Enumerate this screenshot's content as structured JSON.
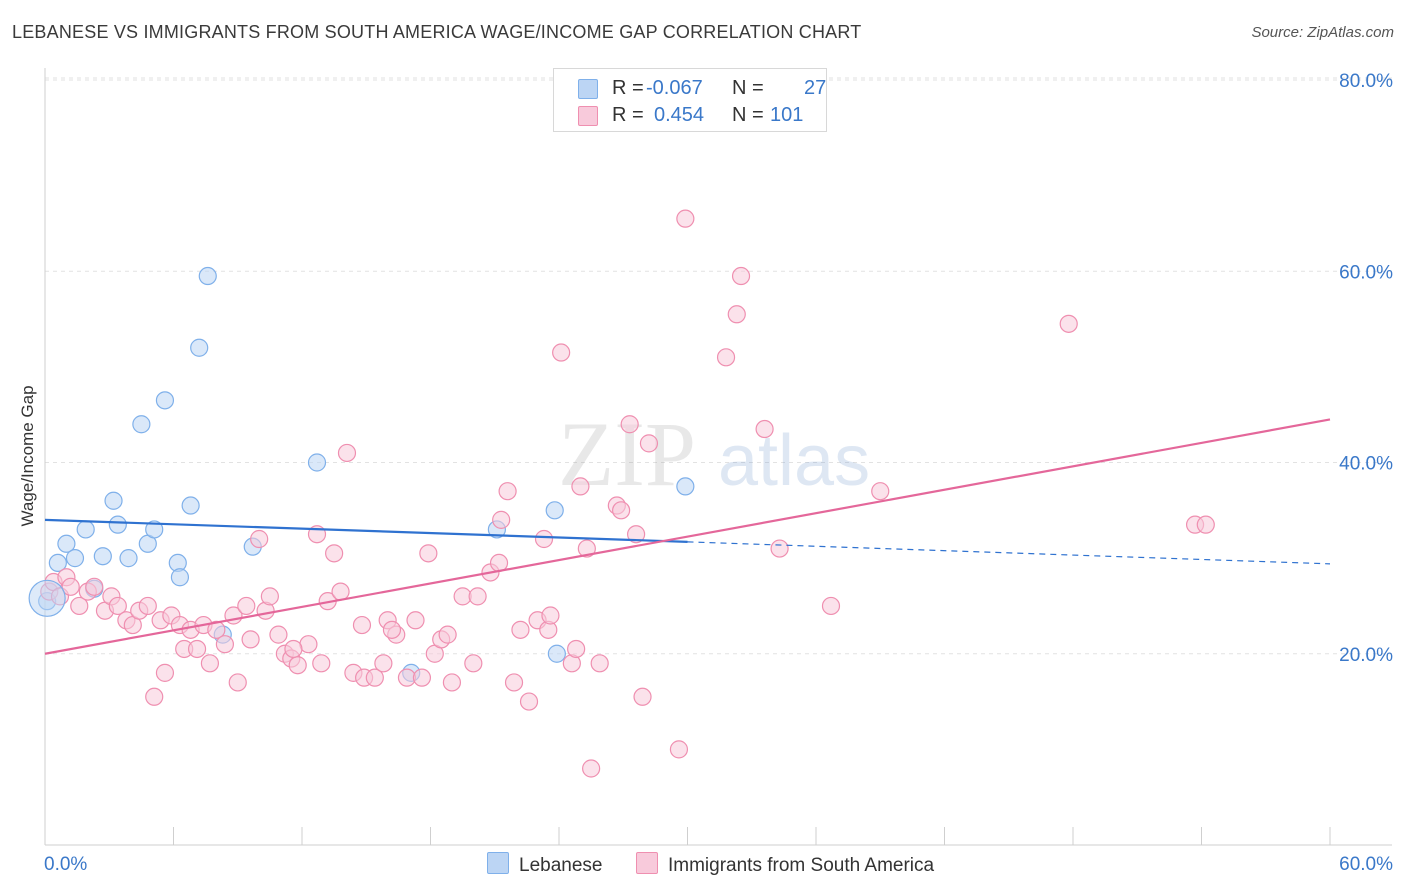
{
  "header": {
    "title": "LEBANESE VS IMMIGRANTS FROM SOUTH AMERICA WAGE/INCOME GAP CORRELATION CHART",
    "source": "Source: ZipAtlas.com"
  },
  "legend": {
    "r_label": "R =",
    "n_label": "N =",
    "rows": [
      {
        "r": "-0.067",
        "n": "27",
        "color": "#aecbf2"
      },
      {
        "r": "0.454",
        "n": "101",
        "color": "#f7bfd0"
      }
    ]
  },
  "watermark": {
    "zip": "ZIP",
    "atlas": "atlas"
  },
  "chart_data": {
    "type": "scatter",
    "title": "LEBANESE VS IMMIGRANTS FROM SOUTH AMERICA WAGE/INCOME GAP CORRELATION CHART",
    "xlabel": "",
    "ylabel": "Wage/Income Gap",
    "xlim": [
      0,
      60
    ],
    "ylim": [
      0,
      80
    ],
    "x_tick_labels": [
      "0.0%",
      "60.0%"
    ],
    "y_ticks": [
      20,
      40,
      60,
      80
    ],
    "y_tick_labels": [
      "20.0%",
      "40.0%",
      "60.0%",
      "80.0%"
    ],
    "grid": true,
    "legend_position": "top-center",
    "series": [
      {
        "name": "Lebanese",
        "color": "#7fb0ea",
        "fill": "#bcd5f4",
        "points": [
          [
            0.1,
            25.5
          ],
          [
            0.6,
            29.5
          ],
          [
            1.0,
            31.5
          ],
          [
            1.4,
            30.0
          ],
          [
            1.9,
            33.0
          ],
          [
            2.3,
            26.8
          ],
          [
            2.7,
            30.2
          ],
          [
            3.2,
            36.0
          ],
          [
            3.4,
            33.5
          ],
          [
            3.9,
            30.0
          ],
          [
            4.5,
            44.0
          ],
          [
            4.8,
            31.5
          ],
          [
            5.1,
            33.0
          ],
          [
            5.6,
            46.5
          ],
          [
            6.2,
            29.5
          ],
          [
            6.3,
            28.0
          ],
          [
            6.8,
            35.5
          ],
          [
            7.2,
            52.0
          ],
          [
            7.6,
            59.5
          ],
          [
            8.3,
            22.0
          ],
          [
            9.7,
            31.2
          ],
          [
            12.7,
            40.0
          ],
          [
            17.1,
            18.0
          ],
          [
            21.1,
            33.0
          ],
          [
            23.8,
            35.0
          ],
          [
            23.9,
            20.0
          ],
          [
            29.9,
            37.5
          ]
        ],
        "trend": {
          "x": [
            0,
            30
          ],
          "y": [
            34.0,
            31.7
          ]
        },
        "trend_dashed": {
          "x": [
            30,
            60
          ],
          "y": [
            31.7,
            29.4
          ]
        }
      },
      {
        "name": "Immigrants from South America",
        "color": "#ef8fb0",
        "fill": "#f8cadb",
        "points": [
          [
            0.2,
            26.5
          ],
          [
            0.4,
            27.5
          ],
          [
            0.7,
            26.0
          ],
          [
            1.0,
            28.0
          ],
          [
            1.2,
            27.0
          ],
          [
            1.6,
            25.0
          ],
          [
            2.0,
            26.5
          ],
          [
            2.3,
            27.0
          ],
          [
            2.8,
            24.5
          ],
          [
            3.1,
            26.0
          ],
          [
            3.4,
            25.0
          ],
          [
            3.8,
            23.5
          ],
          [
            4.1,
            23.0
          ],
          [
            4.4,
            24.5
          ],
          [
            4.8,
            25.0
          ],
          [
            5.1,
            15.5
          ],
          [
            5.4,
            23.5
          ],
          [
            5.6,
            18.0
          ],
          [
            5.9,
            24.0
          ],
          [
            6.3,
            23.0
          ],
          [
            6.5,
            20.5
          ],
          [
            6.8,
            22.5
          ],
          [
            7.1,
            20.5
          ],
          [
            7.4,
            23.0
          ],
          [
            7.7,
            19.0
          ],
          [
            8.0,
            22.5
          ],
          [
            8.4,
            21.0
          ],
          [
            8.8,
            24.0
          ],
          [
            9.0,
            17.0
          ],
          [
            9.4,
            25.0
          ],
          [
            9.6,
            21.5
          ],
          [
            10.0,
            32.0
          ],
          [
            10.3,
            24.5
          ],
          [
            10.5,
            26.0
          ],
          [
            10.9,
            22.0
          ],
          [
            11.2,
            20.0
          ],
          [
            11.5,
            19.5
          ],
          [
            11.8,
            18.8
          ],
          [
            12.3,
            21.0
          ],
          [
            12.7,
            32.5
          ],
          [
            12.9,
            19.0
          ],
          [
            13.2,
            25.5
          ],
          [
            13.5,
            30.5
          ],
          [
            13.8,
            26.5
          ],
          [
            14.1,
            41.0
          ],
          [
            14.4,
            18.0
          ],
          [
            14.8,
            23.0
          ],
          [
            14.9,
            17.5
          ],
          [
            15.4,
            17.5
          ],
          [
            15.8,
            19.0
          ],
          [
            16.0,
            23.5
          ],
          [
            16.4,
            22.0
          ],
          [
            16.9,
            17.5
          ],
          [
            17.3,
            23.5
          ],
          [
            17.6,
            17.5
          ],
          [
            17.9,
            30.5
          ],
          [
            18.2,
            20.0
          ],
          [
            18.5,
            21.5
          ],
          [
            18.8,
            22.0
          ],
          [
            19.0,
            17.0
          ],
          [
            19.5,
            26.0
          ],
          [
            20.0,
            19.0
          ],
          [
            20.2,
            26.0
          ],
          [
            20.8,
            28.5
          ],
          [
            21.2,
            29.5
          ],
          [
            21.3,
            34.0
          ],
          [
            21.6,
            37.0
          ],
          [
            21.9,
            17.0
          ],
          [
            22.2,
            22.5
          ],
          [
            22.6,
            15.0
          ],
          [
            23.0,
            23.5
          ],
          [
            23.3,
            32.0
          ],
          [
            23.5,
            22.5
          ],
          [
            23.6,
            24.0
          ],
          [
            24.1,
            51.5
          ],
          [
            24.6,
            19.0
          ],
          [
            25.0,
            37.5
          ],
          [
            25.3,
            31.0
          ],
          [
            25.5,
            8.0
          ],
          [
            25.9,
            19.0
          ],
          [
            26.7,
            35.5
          ],
          [
            26.9,
            35.0
          ],
          [
            27.3,
            44.0
          ],
          [
            27.6,
            32.5
          ],
          [
            27.9,
            15.5
          ],
          [
            28.2,
            42.0
          ],
          [
            29.6,
            10.0
          ],
          [
            29.9,
            65.5
          ],
          [
            31.8,
            51.0
          ],
          [
            32.3,
            55.5
          ],
          [
            32.5,
            59.5
          ],
          [
            33.6,
            43.5
          ],
          [
            34.3,
            31.0
          ],
          [
            36.7,
            25.0
          ],
          [
            39.0,
            37.0
          ],
          [
            47.8,
            54.5
          ],
          [
            53.7,
            33.5
          ],
          [
            54.2,
            33.5
          ],
          [
            24.8,
            20.5
          ],
          [
            11.6,
            20.5
          ],
          [
            16.2,
            22.5
          ]
        ],
        "trend": {
          "x": [
            0,
            60
          ],
          "y": [
            20.0,
            44.5
          ]
        }
      }
    ]
  }
}
